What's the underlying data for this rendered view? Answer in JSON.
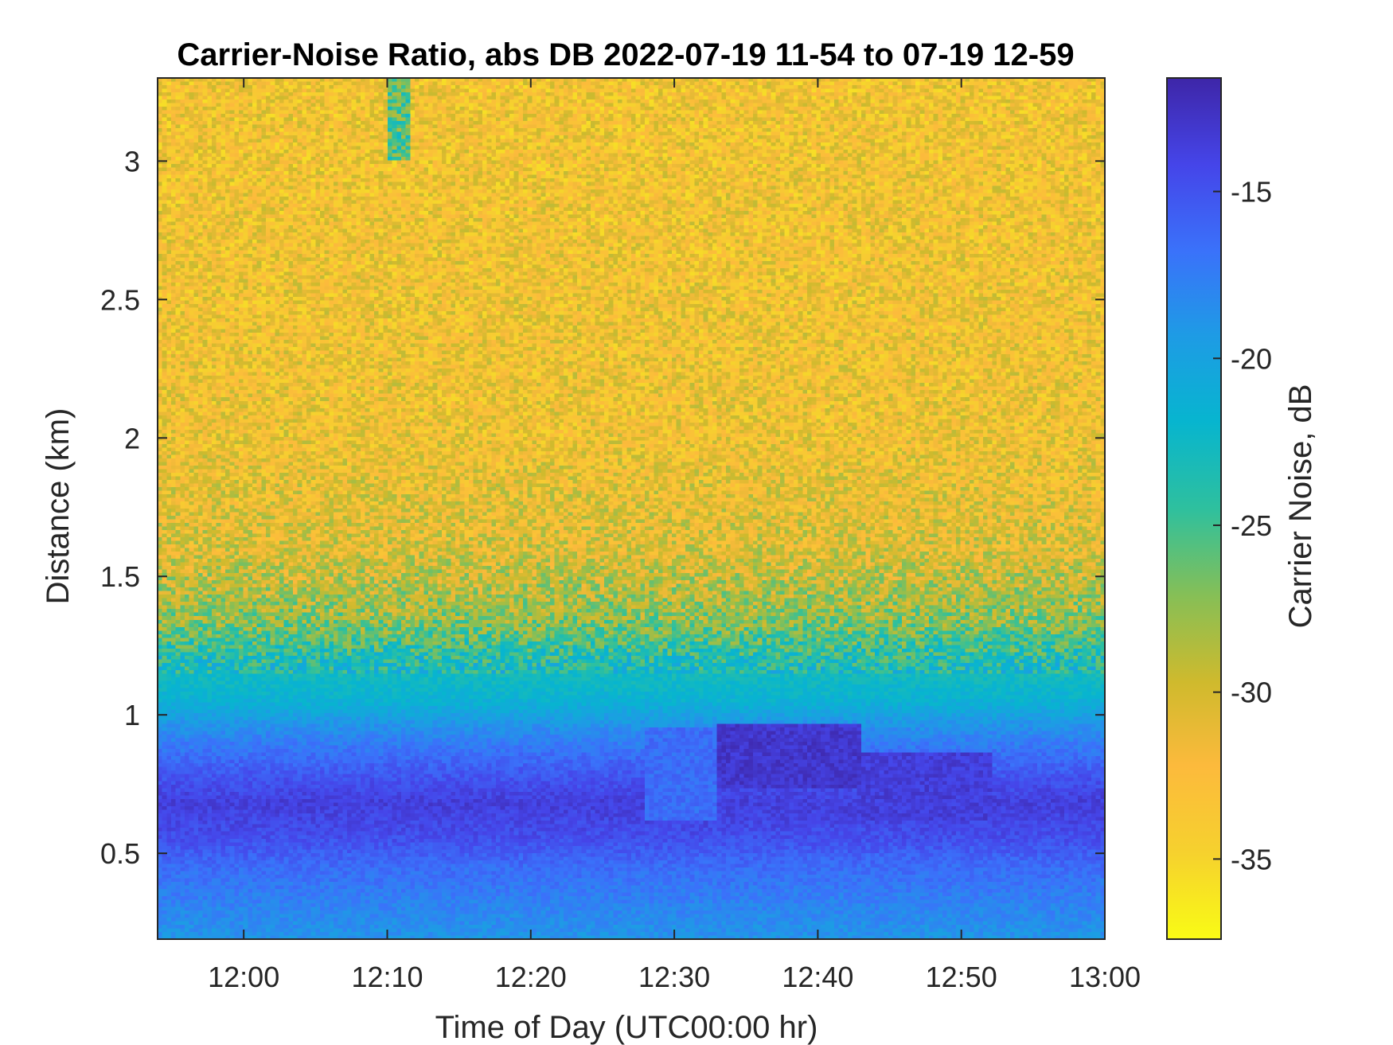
{
  "chart_data": {
    "type": "heatmap",
    "title": "Carrier-Noise Ratio, abs DB 2022-07-19 11-54 to 07-19 12-59",
    "xlabel": "Time of Day (UTC00:00 hr)",
    "ylabel": "Distance (km)",
    "colorbar_label": "Carrier Noise, dB",
    "x_range_minutes_of_day": [
      714,
      780
    ],
    "y_range_km": [
      0.19,
      3.3
    ],
    "x_ticks": [
      {
        "value": 720,
        "label": "12:00"
      },
      {
        "value": 730,
        "label": "12:10"
      },
      {
        "value": 740,
        "label": "12:20"
      },
      {
        "value": 750,
        "label": "12:30"
      },
      {
        "value": 760,
        "label": "12:40"
      },
      {
        "value": 770,
        "label": "12:50"
      },
      {
        "value": 780,
        "label": "13:00"
      }
    ],
    "y_ticks": [
      {
        "value": 0.5,
        "label": "0.5"
      },
      {
        "value": 1,
        "label": "1"
      },
      {
        "value": 1.5,
        "label": "1.5"
      },
      {
        "value": 2,
        "label": "2"
      },
      {
        "value": 2.5,
        "label": "2.5"
      },
      {
        "value": 3,
        "label": "3"
      }
    ],
    "colorbar_range_db": [
      -37.4,
      -11.6
    ],
    "colorbar_ticks": [
      {
        "value": -15,
        "label": "-15"
      },
      {
        "value": -20,
        "label": "-20"
      },
      {
        "value": -25,
        "label": "-25"
      },
      {
        "value": -30,
        "label": "-30"
      },
      {
        "value": -35,
        "label": "-35"
      }
    ],
    "colormap": "parula",
    "colormap_stops": [
      {
        "value": -11.6,
        "color": "#3e26a8"
      },
      {
        "value": -14.2,
        "color": "#4545e9"
      },
      {
        "value": -16.8,
        "color": "#3a72fa"
      },
      {
        "value": -19.3,
        "color": "#1e9be5"
      },
      {
        "value": -21.9,
        "color": "#07b5cf"
      },
      {
        "value": -24.5,
        "color": "#2ec09e"
      },
      {
        "value": -27.1,
        "color": "#86bf56"
      },
      {
        "value": -29.7,
        "color": "#cfba2d"
      },
      {
        "value": -32.2,
        "color": "#fcba3c"
      },
      {
        "value": -34.8,
        "color": "#f6d12e"
      },
      {
        "value": -37.4,
        "color": "#f9fb15"
      }
    ],
    "grid": false,
    "distance_profile_db": [
      {
        "distance_km": 0.19,
        "value": -19.0
      },
      {
        "distance_km": 0.45,
        "value": -16.5
      },
      {
        "distance_km": 0.55,
        "value": -14.8
      },
      {
        "distance_km": 0.68,
        "value": -13.6
      },
      {
        "distance_km": 0.8,
        "value": -15.5
      },
      {
        "distance_km": 0.95,
        "value": -18.5
      },
      {
        "distance_km": 1.05,
        "value": -21.5
      },
      {
        "distance_km": 1.2,
        "value": -23.5
      },
      {
        "distance_km": 1.35,
        "value": -27.5
      },
      {
        "distance_km": 1.6,
        "value": -30.5
      },
      {
        "distance_km": 2.0,
        "value": -32.0
      },
      {
        "distance_km": 3.3,
        "value": -32.5
      }
    ],
    "features": [
      {
        "t_start": 753,
        "t_end": 763,
        "d_start": 0.74,
        "d_end": 0.97,
        "value": -13.0
      },
      {
        "t_start": 763,
        "t_end": 772,
        "d_start": 0.62,
        "d_end": 0.86,
        "value": -13.6
      },
      {
        "t_start": 748,
        "t_end": 753,
        "d_start": 0.62,
        "d_end": 0.95,
        "value": -16.5
      },
      {
        "t_start": 730,
        "t_end": 731.5,
        "d_start": 3.0,
        "d_end": 3.3,
        "value": -25.5
      }
    ]
  }
}
